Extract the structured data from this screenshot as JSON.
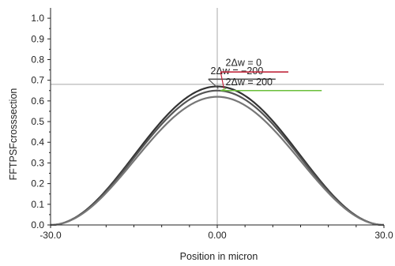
{
  "chart_data": {
    "type": "line",
    "xlabel": "Position in micron",
    "ylabel": "FFTPSFcrosssection",
    "xlim": [
      -30,
      30
    ],
    "ylim": [
      0,
      1.05
    ],
    "xticks": [
      -30,
      0,
      30
    ],
    "xtick_labels": [
      "-30.0",
      "0.00",
      "30.0"
    ],
    "yticks": [
      0.0,
      0.1,
      0.2,
      0.3,
      0.4,
      0.5,
      0.6,
      0.7,
      0.8,
      0.9,
      1.0
    ],
    "ytick_labels": [
      "0.0",
      "0.1",
      "0.2",
      "0.3",
      "0.4",
      "0.5",
      "0.6",
      "0.7",
      "0.8",
      "0.9",
      "1.0"
    ],
    "reference_lines": {
      "vertical_x": 0,
      "horizontal_y": 0.68
    },
    "series": [
      {
        "name": "2Δw = -200",
        "x": [
          -30,
          -20,
          -15,
          -10,
          -5,
          0,
          5,
          10,
          15,
          20,
          30
        ],
        "values": [
          0.0,
          0.07,
          0.17,
          0.34,
          0.54,
          0.67,
          0.54,
          0.34,
          0.17,
          0.07,
          0.0
        ],
        "color": "#333333"
      },
      {
        "name": "2Δw = 0",
        "x": [
          -30,
          -20,
          -15,
          -10,
          -5,
          0,
          5,
          10,
          15,
          20,
          30
        ],
        "values": [
          0.0,
          0.07,
          0.17,
          0.33,
          0.53,
          0.65,
          0.53,
          0.33,
          0.17,
          0.07,
          0.0
        ],
        "color": "#555555"
      },
      {
        "name": "2Δw = 200",
        "x": [
          -30,
          -20,
          -15,
          -10,
          -5,
          0,
          5,
          10,
          15,
          20,
          30
        ],
        "values": [
          0.0,
          0.07,
          0.16,
          0.32,
          0.51,
          0.62,
          0.51,
          0.32,
          0.16,
          0.07,
          0.0
        ],
        "color": "#777777"
      }
    ],
    "annotations": [
      {
        "text": "2Δw = −200",
        "line_color": "#555555",
        "line_y": 0.705,
        "target_x": 0.2
      },
      {
        "text": "2Δw = 0",
        "line_color": "#c0283c",
        "line_y": 0.74,
        "target_x": 1.2
      },
      {
        "text": "2Δw = 200",
        "line_color": "#6abf3a",
        "line_y": 0.65,
        "target_x": 1.6
      }
    ]
  }
}
